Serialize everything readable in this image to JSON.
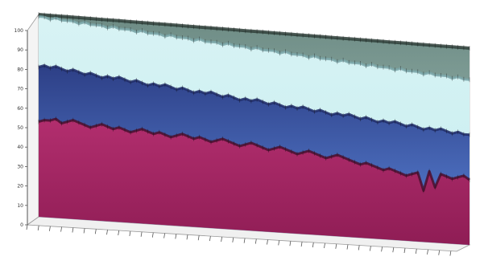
{
  "chart_data": {
    "type": "area",
    "title": "",
    "xlabel": "",
    "ylabel": "",
    "ylim": [
      0,
      100
    ],
    "y_ticks": [
      0,
      10,
      20,
      30,
      40,
      50,
      60,
      70,
      80,
      90,
      100
    ],
    "three_d": true,
    "grid": false,
    "legend": "none",
    "x_count": 76,
    "series": [
      {
        "color": "#a01f5f",
        "values": [
          47,
          48,
          48,
          49,
          47,
          48,
          49,
          48,
          47,
          46,
          47,
          48,
          47,
          46,
          47,
          46,
          45,
          46,
          47,
          46,
          45,
          46,
          45,
          44,
          45,
          46,
          45,
          44,
          45,
          44,
          43,
          44,
          45,
          44,
          43,
          42,
          43,
          44,
          43,
          42,
          41,
          42,
          43,
          42,
          41,
          40,
          41,
          42,
          41,
          40,
          39,
          40,
          41,
          40,
          39,
          38,
          37,
          38,
          37,
          36,
          35,
          36,
          35,
          34,
          33,
          34,
          35,
          26,
          36,
          28,
          35,
          34,
          33,
          34,
          35,
          33
        ]
      },
      {
        "color": "#3f5fbf",
        "values": [
          74,
          75,
          74,
          75,
          74,
          73,
          74,
          73,
          72,
          73,
          72,
          71,
          72,
          71,
          72,
          71,
          70,
          71,
          70,
          69,
          70,
          69,
          70,
          69,
          68,
          69,
          68,
          67,
          68,
          67,
          68,
          67,
          66,
          67,
          66,
          65,
          66,
          65,
          66,
          65,
          64,
          65,
          64,
          63,
          64,
          63,
          64,
          63,
          62,
          63,
          62,
          61,
          62,
          61,
          62,
          61,
          60,
          61,
          60,
          59,
          60,
          59,
          60,
          59,
          58,
          59,
          58,
          57,
          58,
          57,
          58,
          57,
          56,
          57,
          56,
          56
        ]
      },
      {
        "color": "#bfe8ec",
        "values": [
          99,
          99,
          98,
          99,
          98,
          98,
          98,
          97,
          98,
          97,
          97,
          97,
          96,
          97,
          96,
          96,
          96,
          95,
          96,
          95,
          95,
          95,
          94,
          95,
          94,
          94,
          94,
          93,
          94,
          93,
          93,
          93,
          92,
          93,
          92,
          92,
          92,
          91,
          92,
          91,
          91,
          91,
          90,
          91,
          90,
          90,
          90,
          89,
          90,
          89,
          89,
          89,
          88,
          89,
          88,
          88,
          88,
          87,
          88,
          87,
          87,
          87,
          86,
          87,
          86,
          86,
          86,
          85,
          86,
          85,
          85,
          85,
          84,
          85,
          84,
          84
        ]
      },
      {
        "color": "#8aa39a",
        "values": [
          100,
          100,
          100,
          100,
          100,
          100,
          100,
          100,
          100,
          100,
          100,
          100,
          100,
          100,
          100,
          100,
          100,
          100,
          100,
          100,
          100,
          100,
          100,
          100,
          100,
          100,
          100,
          100,
          100,
          100,
          100,
          100,
          100,
          100,
          100,
          100,
          100,
          100,
          100,
          100,
          100,
          100,
          100,
          100,
          100,
          100,
          100,
          100,
          100,
          100,
          100,
          100,
          100,
          100,
          100,
          100,
          100,
          100,
          100,
          100,
          100,
          100,
          100,
          100,
          100,
          100,
          100,
          100,
          100,
          100,
          100,
          100,
          100,
          100,
          100,
          100
        ]
      }
    ]
  }
}
